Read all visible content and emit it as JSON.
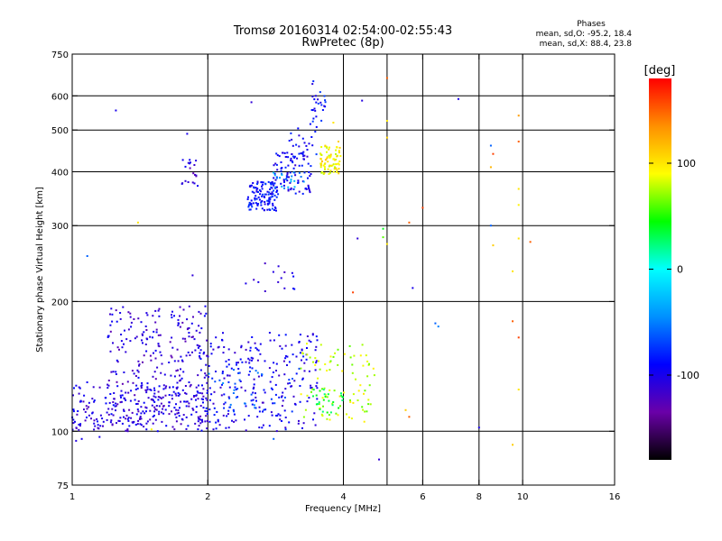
{
  "title_line1": "Tromsø 20160314 02:54:00-02:55:43",
  "title_line2": "RwPretec (8p)",
  "phases_header": "Phases",
  "phases_line1": "mean, sd,O: -95.2, 18.4",
  "phases_line2": "mean, sd,X:  88.4, 23.8",
  "colorbar": {
    "unit_label": "[deg]",
    "min": -180,
    "max": 180,
    "tick_labels": [
      "100",
      "0",
      "-100"
    ],
    "tick_values": [
      100,
      0,
      -100
    ],
    "colors": [
      "#000000",
      "#6a00a8",
      "#0000ff",
      "#0090ff",
      "#00ffff",
      "#00ff00",
      "#ffff00",
      "#ff9000",
      "#ff0000"
    ]
  },
  "chart_data": {
    "type": "scatter",
    "title": "Tromsø 20160314 02:54:00-02:55:43",
    "subtitle": "RwPretec (8p)",
    "xlabel": "Frequency [MHz]",
    "ylabel": "Stationary phase Virtual Height [km]",
    "xscale": "log",
    "yscale": "log",
    "xlim": [
      1,
      16
    ],
    "ylim": [
      75,
      750
    ],
    "x_ticks": [
      1,
      2,
      4,
      6,
      8,
      10,
      16
    ],
    "x_tick_labels": [
      "1",
      "2",
      "4",
      "6",
      "8",
      "10",
      "16"
    ],
    "y_ticks": [
      75,
      100,
      200,
      300,
      400,
      500,
      600,
      750
    ],
    "y_tick_labels": [
      "75",
      "100",
      "200",
      "300",
      "400",
      "500",
      "600",
      "750"
    ],
    "x_grid": [
      2,
      4,
      5,
      6,
      8,
      10
    ],
    "y_grid": [
      100,
      200,
      300,
      400,
      500,
      600
    ],
    "grid": true,
    "color_by": "phase [deg]",
    "clusters": [
      {
        "x": [
          1.0,
          2.0
        ],
        "y": [
          100,
          130
        ],
        "phase": -105,
        "n": 230
      },
      {
        "x": [
          1.2,
          2.0
        ],
        "y": [
          105,
          195
        ],
        "phase": -110,
        "n": 260
      },
      {
        "x": [
          1.9,
          3.5
        ],
        "y": [
          100,
          170
        ],
        "phase": -100,
        "n": 260
      },
      {
        "x": [
          2.0,
          3.2
        ],
        "y": [
          110,
          140
        ],
        "phase": -60,
        "n": 40
      },
      {
        "x": [
          3.2,
          4.7
        ],
        "y": [
          105,
          160
        ],
        "phase": 80,
        "n": 90
      },
      {
        "x": [
          3.4,
          4.0
        ],
        "y": [
          110,
          125
        ],
        "phase": 30,
        "n": 25
      },
      {
        "x": [
          2.45,
          2.85
        ],
        "y": [
          325,
          380
        ],
        "phase": -85,
        "n": 120
      },
      {
        "x": [
          2.8,
          3.4
        ],
        "y": [
          355,
          445
        ],
        "phase": -95,
        "n": 90
      },
      {
        "x": [
          2.8,
          3.3
        ],
        "y": [
          365,
          400
        ],
        "phase": -40,
        "n": 20
      },
      {
        "x": [
          3.0,
          3.5
        ],
        "y": [
          430,
          520
        ],
        "phase": -90,
        "n": 25
      },
      {
        "x": [
          3.4,
          3.65
        ],
        "y": [
          520,
          655
        ],
        "phase": -90,
        "n": 25
      },
      {
        "x": [
          3.55,
          3.95
        ],
        "y": [
          395,
          460
        ],
        "phase": 95,
        "n": 75
      },
      {
        "x": [
          1.75,
          1.9
        ],
        "y": [
          370,
          430
        ],
        "phase": -110,
        "n": 20
      },
      {
        "x": [
          2.4,
          3.3
        ],
        "y": [
          210,
          260
        ],
        "phase": -105,
        "n": 15
      }
    ],
    "points": [
      {
        "x": 1.25,
        "y": 555,
        "phase": -100
      },
      {
        "x": 2.5,
        "y": 580,
        "phase": -110
      },
      {
        "x": 4.4,
        "y": 585,
        "phase": -105
      },
      {
        "x": 5.0,
        "y": 660,
        "phase": 150
      },
      {
        "x": 7.2,
        "y": 590,
        "phase": -100
      },
      {
        "x": 9.8,
        "y": 540,
        "phase": 130
      },
      {
        "x": 9.8,
        "y": 470,
        "phase": 150
      },
      {
        "x": 9.8,
        "y": 365,
        "phase": 100
      },
      {
        "x": 9.8,
        "y": 335,
        "phase": 95
      },
      {
        "x": 9.8,
        "y": 280,
        "phase": 100
      },
      {
        "x": 10.4,
        "y": 275,
        "phase": 150
      },
      {
        "x": 9.5,
        "y": 235,
        "phase": 100
      },
      {
        "x": 9.5,
        "y": 180,
        "phase": 150
      },
      {
        "x": 9.8,
        "y": 165,
        "phase": 160
      },
      {
        "x": 9.8,
        "y": 125,
        "phase": 100
      },
      {
        "x": 9.5,
        "y": 93,
        "phase": 110
      },
      {
        "x": 8.5,
        "y": 460,
        "phase": -60
      },
      {
        "x": 8.6,
        "y": 440,
        "phase": 160
      },
      {
        "x": 8.5,
        "y": 410,
        "phase": 120
      },
      {
        "x": 8.5,
        "y": 300,
        "phase": -60
      },
      {
        "x": 8.6,
        "y": 270,
        "phase": 110
      },
      {
        "x": 8.0,
        "y": 102,
        "phase": -100
      },
      {
        "x": 5.6,
        "y": 305,
        "phase": 150
      },
      {
        "x": 6.0,
        "y": 330,
        "phase": 160
      },
      {
        "x": 5.0,
        "y": 480,
        "phase": 110
      },
      {
        "x": 5.0,
        "y": 525,
        "phase": 100
      },
      {
        "x": 4.9,
        "y": 295,
        "phase": 40
      },
      {
        "x": 4.9,
        "y": 282,
        "phase": 60
      },
      {
        "x": 5.0,
        "y": 272,
        "phase": 100
      },
      {
        "x": 4.3,
        "y": 280,
        "phase": -110
      },
      {
        "x": 4.2,
        "y": 210,
        "phase": 160
      },
      {
        "x": 5.7,
        "y": 215,
        "phase": -100
      },
      {
        "x": 6.4,
        "y": 178,
        "phase": -60
      },
      {
        "x": 6.5,
        "y": 175,
        "phase": -50
      },
      {
        "x": 5.5,
        "y": 112,
        "phase": 110
      },
      {
        "x": 5.6,
        "y": 108,
        "phase": 150
      },
      {
        "x": 4.8,
        "y": 86,
        "phase": -110
      },
      {
        "x": 1.4,
        "y": 305,
        "phase": 100
      },
      {
        "x": 1.08,
        "y": 255,
        "phase": -60
      },
      {
        "x": 1.8,
        "y": 490,
        "phase": -100
      },
      {
        "x": 1.85,
        "y": 230,
        "phase": -110
      },
      {
        "x": 1.02,
        "y": 95,
        "phase": -105
      },
      {
        "x": 1.05,
        "y": 96,
        "phase": -100
      },
      {
        "x": 1.15,
        "y": 97,
        "phase": -100
      },
      {
        "x": 1.5,
        "y": 101,
        "phase": 90
      },
      {
        "x": 3.8,
        "y": 520,
        "phase": 100
      },
      {
        "x": 3.9,
        "y": 470,
        "phase": 110
      },
      {
        "x": 2.8,
        "y": 96,
        "phase": -60
      }
    ]
  }
}
